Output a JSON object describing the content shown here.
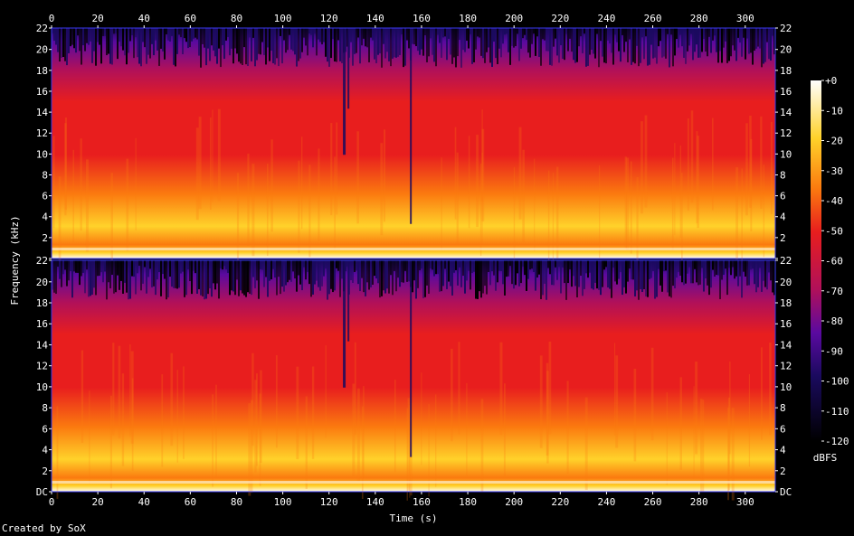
{
  "chart_data": {
    "type": "heatmap",
    "title": "",
    "xlabel": "Time (s)",
    "ylabel": "Frequency (kHz)",
    "x_ticks": [
      "0",
      "20",
      "40",
      "60",
      "80",
      "100",
      "120",
      "140",
      "160",
      "180",
      "200",
      "220",
      "240",
      "260",
      "280",
      "300"
    ],
    "y_ticks": [
      "DC",
      "2",
      "4",
      "6",
      "8",
      "10",
      "12",
      "14",
      "16",
      "18",
      "20",
      "22"
    ],
    "xlim": [
      0,
      313
    ],
    "ylim_khz": [
      0,
      22.05
    ],
    "channels": 2,
    "colorbar": {
      "label": "dBFS",
      "range": [
        -120,
        0
      ],
      "ticks": [
        "+0",
        "-10",
        "-20",
        "-30",
        "-40",
        "-50",
        "-60",
        "-70",
        "-80",
        "-90",
        "-100",
        "-110",
        "-120"
      ]
    },
    "series": [
      {
        "name": "",
        "channel": 1
      },
      {
        "name": "",
        "channel": 2
      }
    ],
    "colors": {
      "background": "#000000",
      "low": "#000000",
      "c1": "#1a0a5e",
      "c2": "#5a0aa0",
      "c3": "#b0105a",
      "c4": "#e81e1e",
      "c5": "#fb7a0f",
      "c6": "#ffd22a",
      "high": "#ffffff",
      "axis": "#3a3af0"
    }
  },
  "footer": "Created by SoX"
}
